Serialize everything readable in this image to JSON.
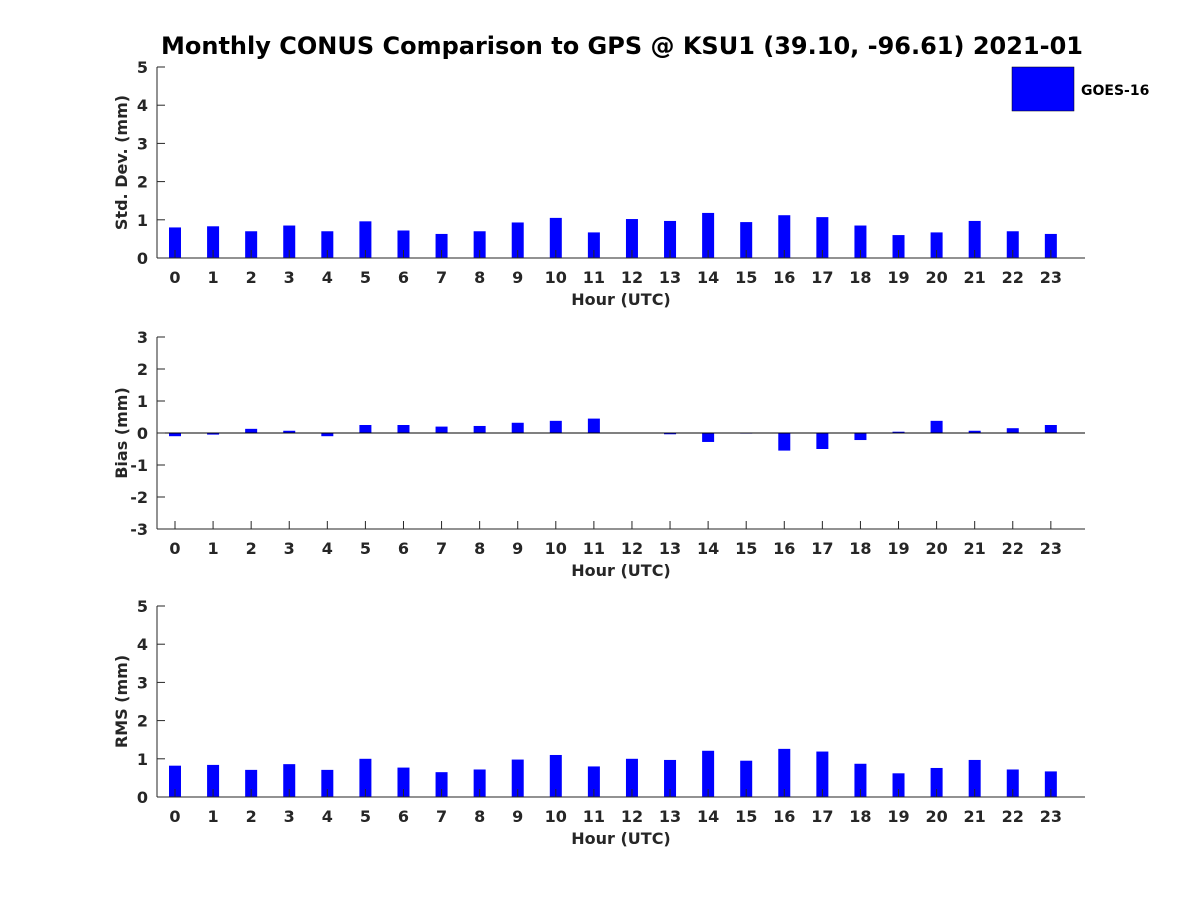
{
  "chart_data": {
    "type": "bar",
    "title": "Monthly CONUS Comparison to GPS @ KSU1 (39.10, -96.61) 2021-01",
    "legend": {
      "label": "GOES-16",
      "placement": "top-right"
    },
    "colors": {
      "bar": "#0000ff",
      "axis": "#262626",
      "zero_line": "#000000"
    },
    "categories": [
      "0",
      "1",
      "2",
      "3",
      "4",
      "5",
      "6",
      "7",
      "8",
      "9",
      "10",
      "11",
      "12",
      "13",
      "14",
      "15",
      "16",
      "17",
      "18",
      "19",
      "20",
      "21",
      "22",
      "23"
    ],
    "panels": [
      {
        "id": "std",
        "ylabel": "Std. Dev. (mm)",
        "xlabel": "Hour (UTC)",
        "ylim": [
          0,
          5
        ],
        "yticks": [
          "0",
          "1",
          "2",
          "3",
          "4",
          "5"
        ],
        "series": [
          {
            "name": "GOES-16",
            "values": [
              0.8,
              0.83,
              0.7,
              0.85,
              0.7,
              0.96,
              0.72,
              0.63,
              0.7,
              0.93,
              1.05,
              0.67,
              1.02,
              0.97,
              1.18,
              0.94,
              1.12,
              1.07,
              0.85,
              0.6,
              0.67,
              0.97,
              0.7,
              0.63
            ]
          }
        ]
      },
      {
        "id": "bias",
        "ylabel": "Bias (mm)",
        "xlabel": "Hour (UTC)",
        "ylim": [
          -3,
          3
        ],
        "yticks": [
          "-3",
          "-2",
          "-1",
          "0",
          "1",
          "2",
          "3"
        ],
        "series": [
          {
            "name": "GOES-16",
            "values": [
              -0.1,
              -0.05,
              0.13,
              0.07,
              -0.1,
              0.25,
              0.25,
              0.2,
              0.22,
              0.32,
              0.38,
              0.45,
              0.01,
              -0.04,
              -0.28,
              0.0,
              -0.55,
              -0.5,
              -0.22,
              0.04,
              0.38,
              0.07,
              0.15,
              0.25
            ]
          }
        ]
      },
      {
        "id": "rms",
        "ylabel": "RMS (mm)",
        "xlabel": "Hour (UTC)",
        "ylim": [
          0,
          5
        ],
        "yticks": [
          "0",
          "1",
          "2",
          "3",
          "4",
          "5"
        ],
        "series": [
          {
            "name": "GOES-16",
            "values": [
              0.82,
              0.84,
              0.71,
              0.86,
              0.71,
              1.0,
              0.77,
              0.65,
              0.72,
              0.98,
              1.1,
              0.8,
              1.0,
              0.97,
              1.21,
              0.95,
              1.26,
              1.19,
              0.87,
              0.62,
              0.76,
              0.97,
              0.72,
              0.67
            ]
          }
        ]
      }
    ]
  }
}
